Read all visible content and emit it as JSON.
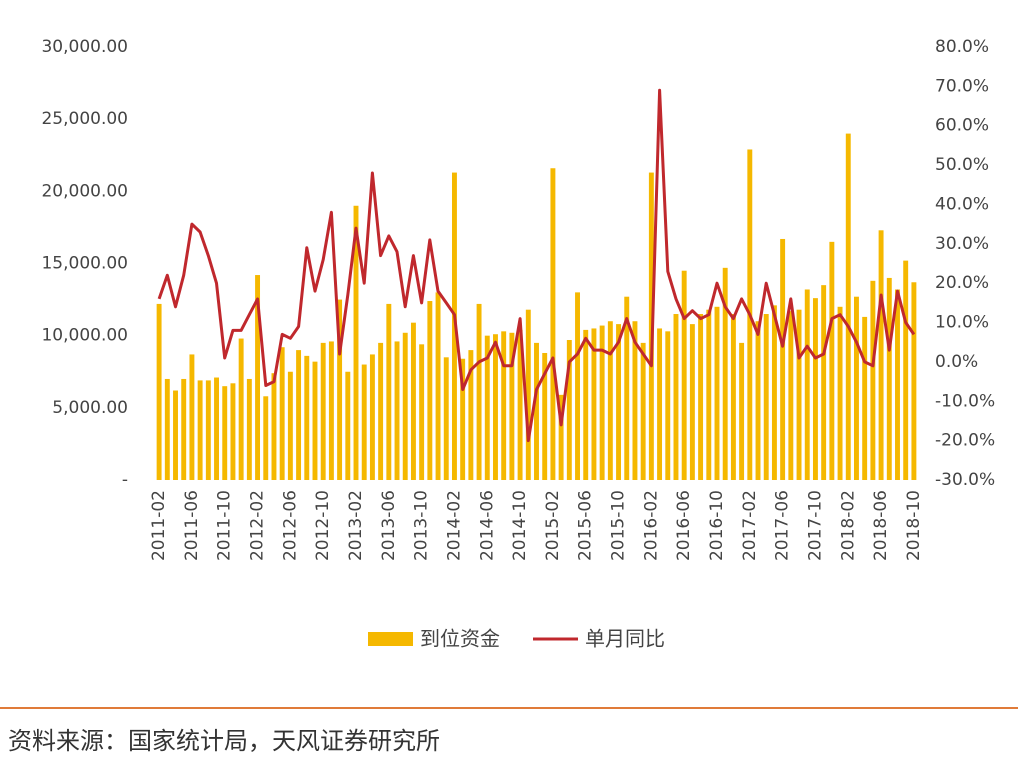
{
  "chart_data": {
    "type": "bar-line",
    "categories": [
      "2011-02",
      null,
      null,
      null,
      "2011-06",
      null,
      null,
      null,
      "2011-10",
      null,
      null,
      null,
      "2012-02",
      null,
      null,
      null,
      "2012-06",
      null,
      null,
      null,
      "2012-10",
      null,
      null,
      null,
      "2013-02",
      null,
      null,
      null,
      "2013-06",
      null,
      null,
      null,
      "2013-10",
      null,
      null,
      null,
      "2014-02",
      null,
      null,
      null,
      "2014-06",
      null,
      null,
      null,
      "2014-10",
      null,
      null,
      null,
      "2015-02",
      null,
      null,
      null,
      "2015-06",
      null,
      null,
      null,
      "2015-10",
      null,
      null,
      null,
      "2016-02",
      null,
      null,
      null,
      "2016-06",
      null,
      null,
      null,
      "2016-10",
      null,
      null,
      null,
      "2017-02",
      null,
      null,
      null,
      "2017-06",
      null,
      null,
      null,
      "2017-10",
      null,
      null,
      null,
      "2018-02",
      null,
      null,
      null,
      "2018-06",
      null,
      null,
      null,
      "2018-10"
    ],
    "series": [
      {
        "name": "到位资金",
        "type": "bar",
        "color": "#f5b800",
        "values": [
          12200,
          7000,
          6200,
          7000,
          8700,
          6900,
          6900,
          7100,
          6500,
          6700,
          9800,
          7000,
          14200,
          5800,
          7400,
          9200,
          7500,
          9000,
          8600,
          8200,
          9500,
          9600,
          12500,
          7500,
          19000,
          8000,
          8700,
          9500,
          12200,
          9600,
          10200,
          10900,
          9400,
          12400,
          13000,
          8500,
          21300,
          8400,
          9000,
          12200,
          10000,
          10100,
          10300,
          10200,
          10400,
          11800,
          9500,
          8800,
          21600,
          5900,
          9700,
          13000,
          10400,
          10500,
          10700,
          11000,
          10800,
          12700,
          11000,
          9500,
          21300,
          10500,
          10300,
          11500,
          14500,
          10800,
          11500,
          11800,
          12000,
          14700,
          11500,
          9500,
          22900,
          11000,
          11500,
          12100,
          16700,
          11700,
          11800,
          13200,
          12600,
          13500,
          16500,
          12000,
          24000,
          12700,
          11300,
          13800,
          17300,
          14000,
          13200,
          15200,
          13700
        ]
      },
      {
        "name": "单月同比",
        "type": "line",
        "axis": "y2",
        "color": "#c0282d",
        "values": [
          16,
          22,
          14,
          22,
          35,
          33,
          27,
          20,
          1,
          8,
          8,
          12,
          16,
          -6,
          -5,
          7,
          6,
          9,
          29,
          18,
          26,
          38,
          2,
          17,
          34,
          20,
          48,
          27,
          32,
          28,
          14,
          27,
          15,
          31,
          18,
          15,
          12,
          -7,
          -2,
          0,
          1,
          5,
          -1,
          -1,
          11,
          -20,
          -7,
          -3,
          1,
          -16,
          0,
          2,
          6,
          3,
          3,
          2,
          5,
          11,
          5,
          2,
          -1,
          69,
          23,
          16,
          11,
          13,
          11,
          12,
          20,
          14,
          11,
          16,
          12,
          7,
          20,
          12,
          4,
          16,
          1,
          4,
          1,
          2,
          11,
          12,
          9,
          5,
          0,
          -1,
          17,
          3,
          18,
          10,
          7
        ]
      }
    ],
    "ylim": [
      0,
      30000
    ],
    "yticks": [
      {
        "value": 0,
        "label": "-"
      },
      {
        "value": 5000,
        "label": "5,000.00"
      },
      {
        "value": 10000,
        "label": "10,000.00"
      },
      {
        "value": 15000,
        "label": "15,000.00"
      },
      {
        "value": 20000,
        "label": "20,000.00"
      },
      {
        "value": 25000,
        "label": "25,000.00"
      },
      {
        "value": 30000,
        "label": "30,000.00"
      }
    ],
    "y2lim": [
      -30,
      80
    ],
    "y2ticks": [
      {
        "value": -30,
        "label": "-30.0%"
      },
      {
        "value": -20,
        "label": "-20.0%"
      },
      {
        "value": -10,
        "label": "-10.0%"
      },
      {
        "value": 0,
        "label": "0.0%"
      },
      {
        "value": 10,
        "label": "10.0%"
      },
      {
        "value": 20,
        "label": "20.0%"
      },
      {
        "value": 30,
        "label": "30.0%"
      },
      {
        "value": 40,
        "label": "40.0%"
      },
      {
        "value": 50,
        "label": "50.0%"
      },
      {
        "value": 60,
        "label": "60.0%"
      },
      {
        "value": 70,
        "label": "70.0%"
      },
      {
        "value": 80,
        "label": "80.0%"
      }
    ],
    "source": "资料来源：国家统计局，天风证券研究所"
  }
}
